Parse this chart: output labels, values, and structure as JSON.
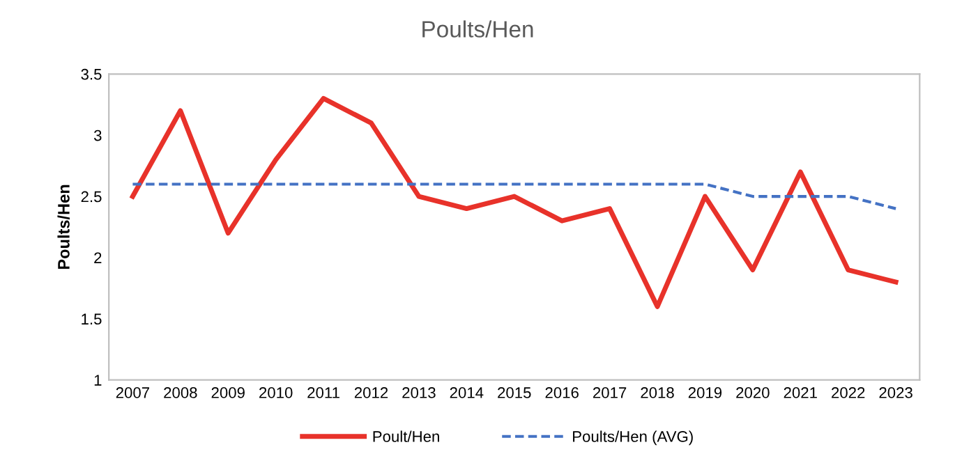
{
  "chart_data": {
    "type": "line",
    "title": "Poults/Hen",
    "ylabel": "Poults/Hen",
    "categories": [
      "2007",
      "2008",
      "2009",
      "2010",
      "2011",
      "2012",
      "2013",
      "2014",
      "2015",
      "2016",
      "2017",
      "2018",
      "2019",
      "2020",
      "2021",
      "2022",
      "2023"
    ],
    "series": [
      {
        "name": "Poult/Hen",
        "color": "#e8322a",
        "line_style": "solid",
        "values": [
          2.5,
          3.2,
          2.2,
          2.8,
          3.3,
          3.1,
          2.5,
          2.4,
          2.5,
          2.3,
          2.4,
          1.6,
          2.5,
          1.9,
          2.7,
          1.9,
          1.8
        ]
      },
      {
        "name": "Poults/Hen (AVG)",
        "color": "#4472c4",
        "line_style": "dashed",
        "values": [
          2.6,
          2.6,
          2.6,
          2.6,
          2.6,
          2.6,
          2.6,
          2.6,
          2.6,
          2.6,
          2.6,
          2.6,
          2.6,
          2.5,
          2.5,
          2.5,
          2.4
        ]
      }
    ],
    "ylim": [
      1,
      3.5
    ],
    "yticks": [
      1,
      1.5,
      2,
      2.5,
      3,
      3.5
    ],
    "grid": false,
    "legend": "bottom",
    "marker": "none"
  }
}
